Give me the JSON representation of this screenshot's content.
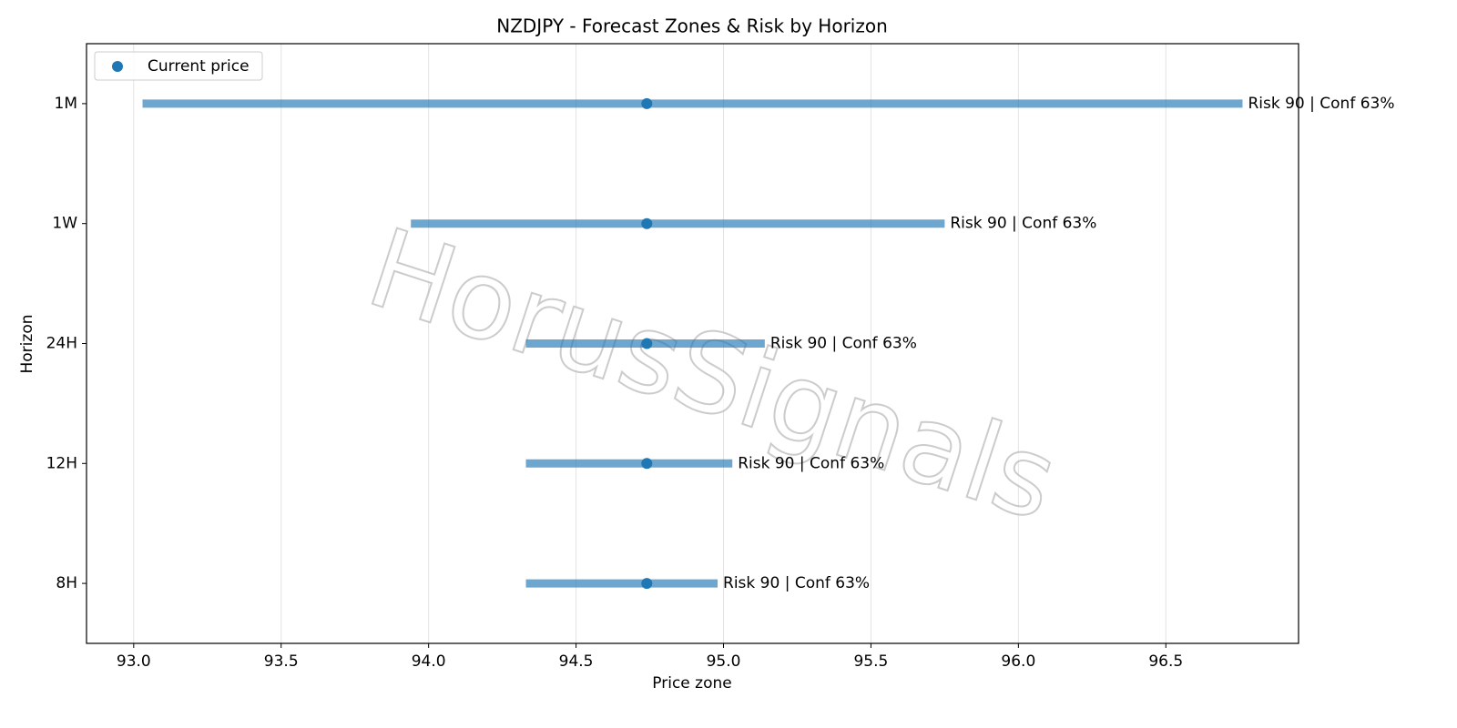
{
  "chart_data": {
    "type": "range",
    "title": "NZDJPY - Forecast Zones & Risk by Horizon",
    "x_label": "Price zone",
    "y_label": "Horizon",
    "watermark": "HorusSignals",
    "categories": [
      "8H",
      "12H",
      "24H",
      "1W",
      "1M"
    ],
    "low": [
      94.33,
      94.33,
      94.33,
      93.94,
      93.03
    ],
    "high": [
      94.98,
      95.03,
      95.14,
      95.75,
      96.76
    ],
    "range_color": "#1f77b4",
    "current": {
      "name": "Current price",
      "color": "#1f77b4",
      "values": [
        94.74,
        94.74,
        94.74,
        94.74,
        94.74
      ]
    },
    "labels": [
      "Risk 90 | Conf 63%",
      "Risk 90 | Conf 63%",
      "Risk 90 | Conf 63%",
      "Risk 90 | Conf 63%",
      "Risk 90 | Conf 63%"
    ],
    "xlim": [
      92.84,
      96.95
    ],
    "xticks": [
      {
        "value": 93,
        "label": "93.0"
      },
      {
        "value": 93.5,
        "label": "93.5"
      },
      {
        "value": 94,
        "label": "94.0"
      },
      {
        "value": 94.5,
        "label": "94.5"
      },
      {
        "value": 95,
        "label": "95.0"
      },
      {
        "value": 95.5,
        "label": "95.5"
      },
      {
        "value": 96,
        "label": "96.0"
      },
      {
        "value": 96.5,
        "label": "96.5"
      }
    ],
    "grid": true,
    "legend": "upper left"
  }
}
